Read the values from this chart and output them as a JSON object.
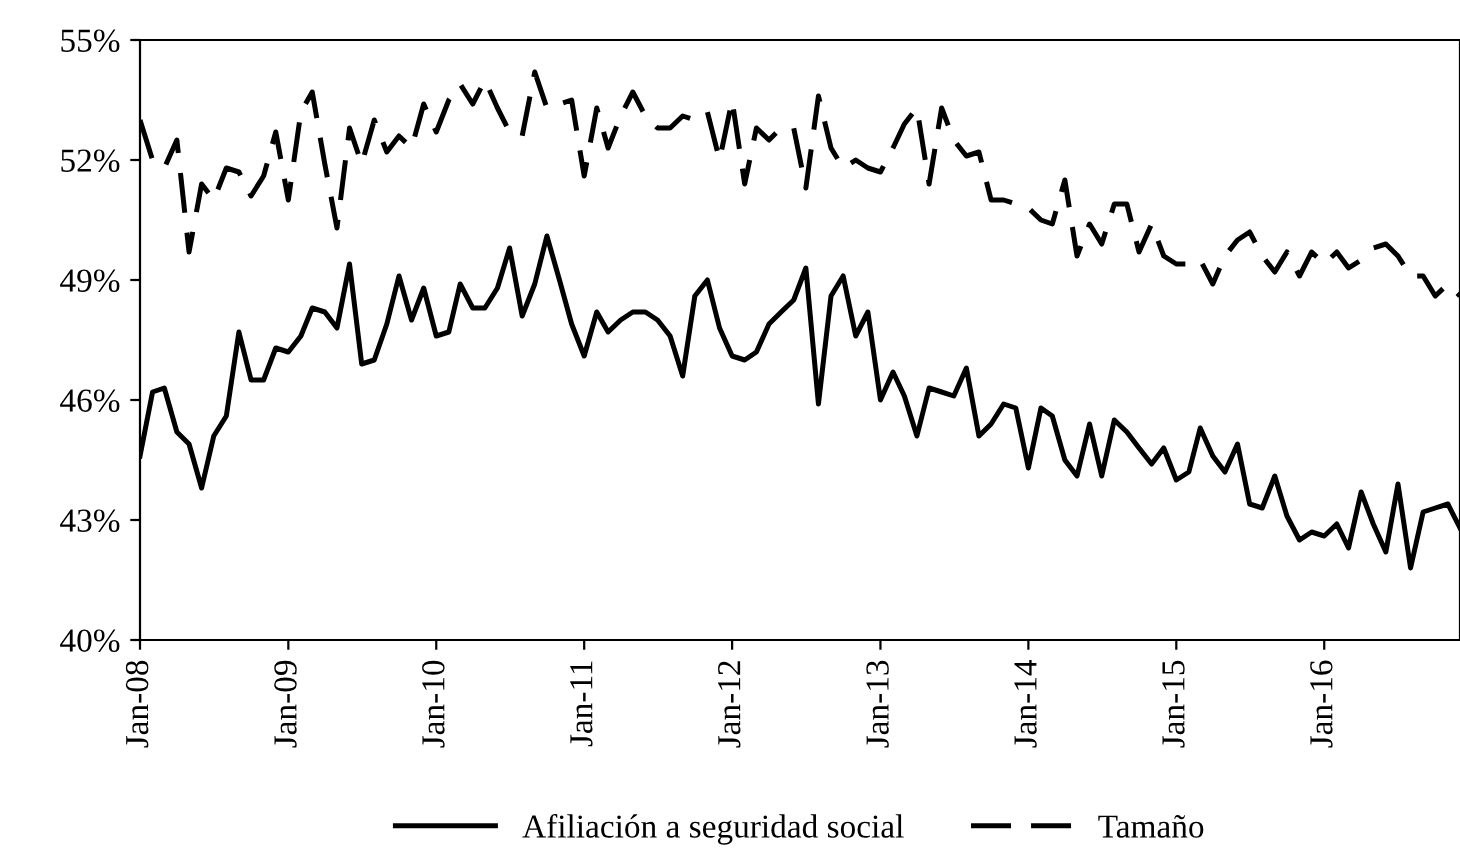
{
  "chart_data": {
    "type": "line",
    "x": [
      "2008-01",
      "2008-02",
      "2008-03",
      "2008-04",
      "2008-05",
      "2008-06",
      "2008-07",
      "2008-08",
      "2008-09",
      "2008-10",
      "2008-11",
      "2008-12",
      "2009-01",
      "2009-02",
      "2009-03",
      "2009-04",
      "2009-05",
      "2009-06",
      "2009-07",
      "2009-08",
      "2009-09",
      "2009-10",
      "2009-11",
      "2009-12",
      "2010-01",
      "2010-02",
      "2010-03",
      "2010-04",
      "2010-05",
      "2010-06",
      "2010-07",
      "2010-08",
      "2010-09",
      "2010-10",
      "2010-11",
      "2010-12",
      "2011-01",
      "2011-02",
      "2011-03",
      "2011-04",
      "2011-05",
      "2011-06",
      "2011-07",
      "2011-08",
      "2011-09",
      "2011-10",
      "2011-11",
      "2011-12",
      "2012-01",
      "2012-02",
      "2012-03",
      "2012-04",
      "2012-05",
      "2012-06",
      "2012-07",
      "2012-08",
      "2012-09",
      "2012-10",
      "2012-11",
      "2012-12",
      "2013-01",
      "2013-02",
      "2013-03",
      "2013-04",
      "2013-05",
      "2013-06",
      "2013-07",
      "2013-08",
      "2013-09",
      "2013-10",
      "2013-11",
      "2013-12",
      "2014-01",
      "2014-02",
      "2014-03",
      "2014-04",
      "2014-05",
      "2014-06",
      "2014-07",
      "2014-08",
      "2014-09",
      "2014-10",
      "2014-11",
      "2014-12",
      "2015-01",
      "2015-02",
      "2015-03",
      "2015-04",
      "2015-05",
      "2015-06",
      "2015-07",
      "2015-08",
      "2015-09",
      "2015-10",
      "2015-11",
      "2015-12",
      "2016-01",
      "2016-02",
      "2016-03",
      "2016-04",
      "2016-05",
      "2016-06",
      "2016-07",
      "2016-08",
      "2016-09",
      "2016-10",
      "2016-11",
      "2016-12"
    ],
    "series": [
      {
        "name": "Afiliación a seguridad social",
        "color": "#000000",
        "line_style": "solid",
        "values": [
          44.6,
          46.2,
          46.3,
          45.2,
          44.9,
          43.8,
          45.1,
          45.6,
          47.7,
          46.5,
          46.5,
          47.3,
          47.2,
          47.6,
          48.3,
          48.2,
          47.8,
          49.4,
          46.9,
          47.0,
          47.9,
          49.1,
          48.0,
          48.8,
          47.6,
          47.7,
          48.9,
          48.3,
          48.3,
          48.8,
          49.8,
          48.1,
          48.9,
          50.1,
          49.0,
          47.9,
          47.1,
          48.2,
          47.7,
          48.0,
          48.2,
          48.2,
          48.0,
          47.6,
          46.6,
          48.6,
          49.0,
          47.8,
          47.1,
          47.0,
          47.2,
          47.9,
          48.2,
          48.5,
          49.3,
          45.9,
          48.6,
          49.1,
          47.6,
          48.2,
          46.0,
          46.7,
          46.1,
          45.1,
          46.3,
          46.2,
          46.1,
          46.8,
          45.1,
          45.4,
          45.9,
          45.8,
          44.3,
          45.8,
          45.6,
          44.5,
          44.1,
          45.4,
          44.1,
          45.5,
          45.2,
          44.8,
          44.4,
          44.8,
          44.0,
          44.2,
          45.3,
          44.6,
          44.2,
          44.9,
          43.4,
          43.3,
          44.1,
          43.1,
          42.5,
          42.7,
          42.6,
          42.9,
          42.3,
          43.7,
          42.9,
          42.2,
          43.9,
          41.8,
          43.2,
          43.3,
          43.4,
          42.8
        ]
      },
      {
        "name": "Tamaño",
        "color": "#000000",
        "line_style": "dashed",
        "values": [
          53.0,
          52.0,
          51.8,
          52.5,
          49.7,
          51.4,
          51.0,
          51.8,
          51.7,
          51.1,
          51.6,
          52.7,
          51.0,
          53.2,
          53.7,
          51.9,
          50.3,
          52.8,
          51.9,
          53.0,
          52.2,
          52.6,
          52.3,
          53.4,
          52.7,
          53.5,
          53.9,
          53.4,
          54.0,
          53.3,
          52.7,
          52.6,
          54.2,
          53.3,
          53.4,
          53.5,
          51.6,
          53.3,
          52.3,
          53.1,
          53.7,
          53.1,
          52.8,
          52.8,
          53.1,
          53.0,
          53.2,
          52.0,
          53.5,
          51.4,
          52.8,
          52.5,
          52.8,
          52.8,
          51.3,
          53.6,
          52.3,
          51.8,
          52.0,
          51.8,
          51.7,
          52.3,
          52.9,
          53.3,
          51.4,
          53.3,
          52.5,
          52.1,
          52.2,
          51.0,
          51.0,
          50.9,
          50.8,
          50.5,
          50.4,
          51.5,
          49.6,
          50.4,
          49.9,
          50.9,
          50.9,
          49.7,
          50.4,
          49.6,
          49.4,
          49.4,
          49.5,
          48.9,
          49.6,
          50.0,
          50.2,
          49.6,
          49.2,
          49.7,
          49.1,
          49.7,
          49.4,
          49.7,
          49.3,
          49.5,
          49.8,
          49.9,
          49.6,
          49.1,
          49.1,
          48.6,
          48.9,
          48.6
        ]
      }
    ],
    "xlim": [
      "2008-01",
      "2016-12"
    ],
    "xticks": [
      {
        "value": "2008-01",
        "label": "Jan-08"
      },
      {
        "value": "2009-01",
        "label": "Jan-09"
      },
      {
        "value": "2010-01",
        "label": "Jan-10"
      },
      {
        "value": "2011-01",
        "label": "Jan-11"
      },
      {
        "value": "2012-01",
        "label": "Jan-12"
      },
      {
        "value": "2013-01",
        "label": "Jan-13"
      },
      {
        "value": "2014-01",
        "label": "Jan-14"
      },
      {
        "value": "2015-01",
        "label": "Jan-15"
      },
      {
        "value": "2016-01",
        "label": "Jan-16"
      }
    ],
    "ylim": [
      40,
      55
    ],
    "yticks": [
      {
        "value": 40,
        "label": "40%"
      },
      {
        "value": 43,
        "label": "43%"
      },
      {
        "value": 46,
        "label": "46%"
      },
      {
        "value": 49,
        "label": "49%"
      },
      {
        "value": 52,
        "label": "52%"
      },
      {
        "value": 55,
        "label": "55%"
      }
    ],
    "grid": false,
    "legend": "bottom",
    "marker": "none"
  }
}
